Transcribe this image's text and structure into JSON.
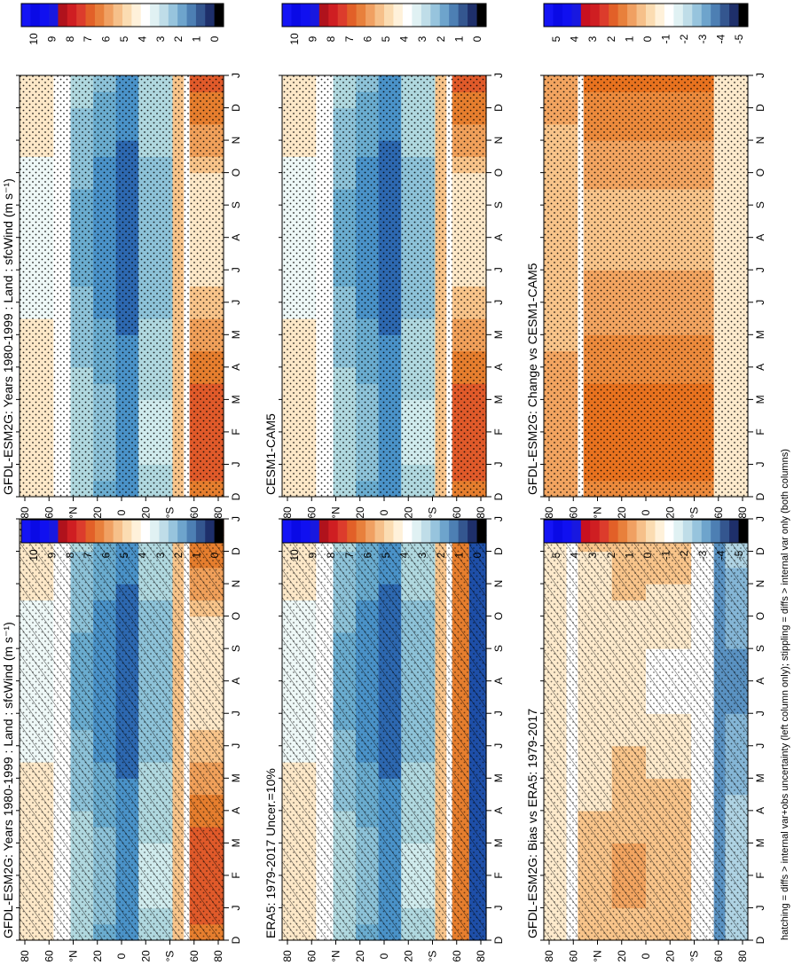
{
  "footnote": "hatching = diffs > internal var+obs uncertainty (left column only); stippling = diffs > internal var only (both columns)",
  "colors": {
    "abs_scale": [
      "#ffffff",
      "#00006e",
      "#1a3b8c",
      "#2d68b0",
      "#4a92c8",
      "#75b2d4",
      "#a3cfdc",
      "#c7e6e9",
      "#e8f6f6",
      "#ffffff",
      "#fdf5e0",
      "#fbdcb0",
      "#f5ba7a",
      "#ee9a4a",
      "#e57a2a",
      "#e05a2a",
      "#e0402e",
      "#d82c2c",
      "#b8161e",
      "#8a0a12",
      "#1414c8",
      "#0a0ad6",
      "#1010e8",
      "#1818f8"
    ],
    "diff_scale": [
      "#000000",
      "#0a1a50",
      "#1e3a80",
      "#3a6aa8",
      "#5a92c2",
      "#85b6d6",
      "#afd3e3",
      "#d4ecef",
      "#eef8f8",
      "#ffffff",
      "#fff4e0",
      "#fde0b8",
      "#f8c48a",
      "#f2a460",
      "#ec8a3c",
      "#e8721f",
      "#e45a26",
      "#e04232",
      "#d82a2a",
      "#c0141a",
      "#1010e0",
      "#0a0ad0",
      "#1414ea",
      "#1c1cfa"
    ]
  },
  "chart_data": [
    {
      "type": "heatmap",
      "panel": "model",
      "title": "GFDL-ESM2G: Years 1980-1999 : Land : sfcWind (m s⁻¹)",
      "xlabel": "month",
      "x": [
        "D",
        "J",
        "F",
        "M",
        "A",
        "M",
        "J",
        "J",
        "A",
        "S",
        "O",
        "N",
        "D",
        "J"
      ],
      "ylabel": "latitude",
      "y_ticks": [
        "80",
        "60",
        "°N",
        "20",
        "0",
        "20",
        "°S",
        "60",
        "80"
      ],
      "ylim": [
        -90,
        90
      ],
      "colorbar_ticks": [
        "10",
        "9",
        "8",
        "7",
        "6",
        "5",
        "4",
        "3",
        "2",
        "1",
        "0"
      ],
      "hatching": true,
      "stippling": true
    },
    {
      "type": "heatmap",
      "panel": "obs",
      "title": "ERA5: 1979-2017 Uncer.=10%",
      "xlabel": "month",
      "x": [
        "D",
        "J",
        "F",
        "M",
        "A",
        "M",
        "J",
        "J",
        "A",
        "S",
        "O",
        "N",
        "D",
        "J"
      ],
      "ylabel": "latitude",
      "y_ticks": [
        "80",
        "60",
        "°N",
        "20",
        "0",
        "20",
        "°S",
        "60",
        "80"
      ],
      "ylim": [
        -90,
        90
      ],
      "colorbar_ticks": [
        "10",
        "9",
        "8",
        "7",
        "6",
        "5",
        "4",
        "3",
        "2",
        "1",
        "0"
      ],
      "hatching": true,
      "stippling": true
    },
    {
      "type": "heatmap",
      "panel": "bias",
      "title": "GFDL-ESM2G: Bias vs ERA5: 1979-2017",
      "xlabel": "month",
      "x": [
        "D",
        "J",
        "F",
        "M",
        "A",
        "M",
        "J",
        "J",
        "A",
        "S",
        "O",
        "N",
        "D",
        "J"
      ],
      "ylabel": "latitude",
      "y_ticks": [
        "80",
        "60",
        "°N",
        "20",
        "0",
        "20",
        "°S",
        "60",
        "80"
      ],
      "ylim": [
        -90,
        90
      ],
      "colorbar_ticks": [
        "5",
        "4",
        "3",
        "2",
        "1",
        "0",
        "-1",
        "-2",
        "-3",
        "-4",
        "-5"
      ],
      "hatching": true,
      "stippling": true
    },
    {
      "type": "heatmap",
      "panel": "model-top-right",
      "title": "GFDL-ESM2G: Years 1980-1999 : Land : sfcWind (m s⁻¹)",
      "xlabel": "month",
      "x": [
        "D",
        "J",
        "F",
        "M",
        "A",
        "M",
        "J",
        "J",
        "A",
        "S",
        "O",
        "N",
        "D",
        "J"
      ],
      "ylabel": "latitude",
      "y_ticks": [
        "80",
        "60",
        "°N",
        "20",
        "0",
        "20",
        "°S",
        "60",
        "80"
      ],
      "ylim": [
        -90,
        90
      ],
      "colorbar_ticks": [
        "10",
        "9",
        "8",
        "7",
        "6",
        "5",
        "4",
        "3",
        "2",
        "1",
        "0"
      ],
      "hatching": false,
      "stippling": true
    },
    {
      "type": "heatmap",
      "panel": "compare-model",
      "title": "CESM1-CAM5",
      "xlabel": "month",
      "x": [
        "D",
        "J",
        "F",
        "M",
        "A",
        "M",
        "J",
        "J",
        "A",
        "S",
        "O",
        "N",
        "D",
        "J"
      ],
      "ylabel": "latitude",
      "y_ticks": [
        "80",
        "60",
        "°N",
        "20",
        "0",
        "20",
        "°S",
        "60",
        "80"
      ],
      "ylim": [
        -90,
        90
      ],
      "colorbar_ticks": [
        "10",
        "9",
        "8",
        "7",
        "6",
        "5",
        "4",
        "3",
        "2",
        "1",
        "0"
      ],
      "hatching": false,
      "stippling": true
    },
    {
      "type": "heatmap",
      "panel": "change",
      "title": "GFDL-ESM2G: Change vs CESM1-CAM5",
      "xlabel": "month",
      "x": [
        "D",
        "J",
        "F",
        "M",
        "A",
        "M",
        "J",
        "J",
        "A",
        "S",
        "O",
        "N",
        "D",
        "J"
      ],
      "ylabel": "latitude",
      "y_ticks": [
        "80",
        "60",
        "°N",
        "20",
        "0",
        "20",
        "°S",
        "60",
        "80"
      ],
      "ylim": [
        -90,
        90
      ],
      "colorbar_ticks": [
        "5",
        "4",
        "3",
        "2",
        "1",
        "0",
        "-1",
        "-2",
        "-3",
        "-4",
        "-5"
      ],
      "hatching": false,
      "stippling": true
    }
  ]
}
